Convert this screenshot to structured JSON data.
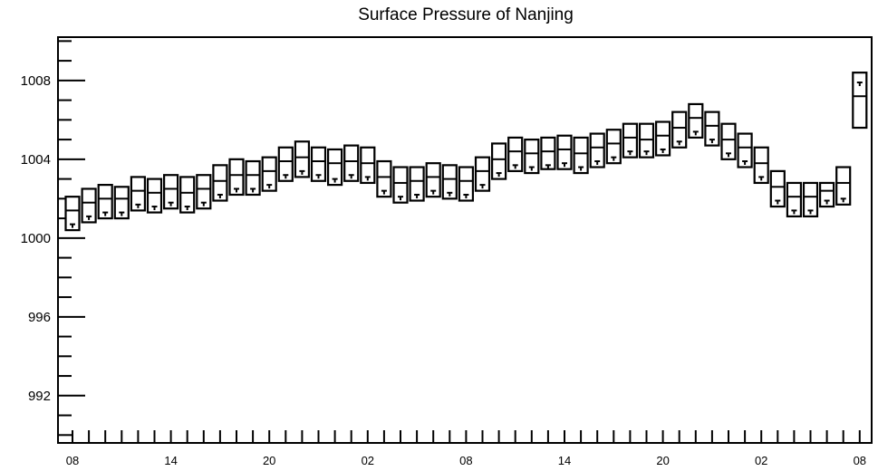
{
  "chart_data": {
    "type": "boxplot",
    "title": "Surface Pressure of Nanjing",
    "xlabel": "",
    "ylabel": "",
    "ylim": [
      989.6,
      1010.2
    ],
    "y_major_ticks": [
      992,
      996,
      1000,
      1004,
      1008
    ],
    "x_tick_labels": [
      "08",
      "14",
      "20",
      "02",
      "08",
      "14",
      "20",
      "02",
      "08"
    ],
    "x_tick_label_positions": [
      0,
      6,
      12,
      18,
      24,
      30,
      36,
      42,
      48
    ],
    "x_count": 49,
    "line_color": "#000000",
    "fill_color": "#ffffff",
    "background": "#ffffff",
    "boxes": [
      {
        "x": 0,
        "q1": 1000.4,
        "median": 1001.4,
        "q3": 1002.1,
        "mean": 1000.7
      },
      {
        "x": 1,
        "q1": 1000.8,
        "median": 1001.8,
        "q3": 1002.5,
        "mean": 1001.1
      },
      {
        "x": 2,
        "q1": 1001.0,
        "median": 1002.0,
        "q3": 1002.7,
        "mean": 1001.3
      },
      {
        "x": 3,
        "q1": 1001.0,
        "median": 1002.0,
        "q3": 1002.6,
        "mean": 1001.3
      },
      {
        "x": 4,
        "q1": 1001.4,
        "median": 1002.4,
        "q3": 1003.1,
        "mean": 1001.7
      },
      {
        "x": 5,
        "q1": 1001.3,
        "median": 1002.3,
        "q3": 1003.0,
        "mean": 1001.6
      },
      {
        "x": 6,
        "q1": 1001.5,
        "median": 1002.5,
        "q3": 1003.2,
        "mean": 1001.8
      },
      {
        "x": 7,
        "q1": 1001.3,
        "median": 1002.3,
        "q3": 1003.1,
        "mean": 1001.6
      },
      {
        "x": 8,
        "q1": 1001.5,
        "median": 1002.5,
        "q3": 1003.2,
        "mean": 1001.8
      },
      {
        "x": 9,
        "q1": 1001.9,
        "median": 1002.9,
        "q3": 1003.7,
        "mean": 1002.2
      },
      {
        "x": 10,
        "q1": 1002.2,
        "median": 1003.2,
        "q3": 1004.0,
        "mean": 1002.5
      },
      {
        "x": 11,
        "q1": 1002.2,
        "median": 1003.2,
        "q3": 1003.9,
        "mean": 1002.5
      },
      {
        "x": 12,
        "q1": 1002.4,
        "median": 1003.4,
        "q3": 1004.1,
        "mean": 1002.7
      },
      {
        "x": 13,
        "q1": 1002.9,
        "median": 1003.9,
        "q3": 1004.6,
        "mean": 1003.2
      },
      {
        "x": 14,
        "q1": 1003.1,
        "median": 1004.1,
        "q3": 1004.9,
        "mean": 1003.4
      },
      {
        "x": 15,
        "q1": 1002.9,
        "median": 1003.9,
        "q3": 1004.6,
        "mean": 1003.2
      },
      {
        "x": 16,
        "q1": 1002.7,
        "median": 1003.8,
        "q3": 1004.5,
        "mean": 1003.0
      },
      {
        "x": 17,
        "q1": 1002.9,
        "median": 1003.9,
        "q3": 1004.7,
        "mean": 1003.2
      },
      {
        "x": 18,
        "q1": 1002.8,
        "median": 1003.8,
        "q3": 1004.6,
        "mean": 1003.1
      },
      {
        "x": 19,
        "q1": 1002.1,
        "median": 1003.1,
        "q3": 1003.9,
        "mean": 1002.4
      },
      {
        "x": 20,
        "q1": 1001.8,
        "median": 1002.8,
        "q3": 1003.6,
        "mean": 1002.1
      },
      {
        "x": 21,
        "q1": 1001.9,
        "median": 1002.9,
        "q3": 1003.6,
        "mean": 1002.2
      },
      {
        "x": 22,
        "q1": 1002.1,
        "median": 1003.1,
        "q3": 1003.8,
        "mean": 1002.4
      },
      {
        "x": 23,
        "q1": 1002.0,
        "median": 1003.0,
        "q3": 1003.7,
        "mean": 1002.3
      },
      {
        "x": 24,
        "q1": 1001.9,
        "median": 1002.9,
        "q3": 1003.6,
        "mean": 1002.2
      },
      {
        "x": 25,
        "q1": 1002.4,
        "median": 1003.4,
        "q3": 1004.1,
        "mean": 1002.7
      },
      {
        "x": 26,
        "q1": 1003.0,
        "median": 1004.0,
        "q3": 1004.8,
        "mean": 1003.3
      },
      {
        "x": 27,
        "q1": 1003.4,
        "median": 1004.4,
        "q3": 1005.1,
        "mean": 1003.7
      },
      {
        "x": 28,
        "q1": 1003.3,
        "median": 1004.3,
        "q3": 1005.0,
        "mean": 1003.6
      },
      {
        "x": 29,
        "q1": 1003.5,
        "median": 1004.4,
        "q3": 1005.1,
        "mean": 1003.7
      },
      {
        "x": 30,
        "q1": 1003.5,
        "median": 1004.5,
        "q3": 1005.2,
        "mean": 1003.8
      },
      {
        "x": 31,
        "q1": 1003.3,
        "median": 1004.3,
        "q3": 1005.1,
        "mean": 1003.6
      },
      {
        "x": 32,
        "q1": 1003.6,
        "median": 1004.6,
        "q3": 1005.3,
        "mean": 1003.9
      },
      {
        "x": 33,
        "q1": 1003.8,
        "median": 1004.8,
        "q3": 1005.5,
        "mean": 1004.1
      },
      {
        "x": 34,
        "q1": 1004.1,
        "median": 1005.1,
        "q3": 1005.8,
        "mean": 1004.4
      },
      {
        "x": 35,
        "q1": 1004.1,
        "median": 1005.0,
        "q3": 1005.8,
        "mean": 1004.4
      },
      {
        "x": 36,
        "q1": 1004.2,
        "median": 1005.2,
        "q3": 1005.9,
        "mean": 1004.5
      },
      {
        "x": 37,
        "q1": 1004.6,
        "median": 1005.6,
        "q3": 1006.4,
        "mean": 1004.9
      },
      {
        "x": 38,
        "q1": 1005.1,
        "median": 1006.1,
        "q3": 1006.8,
        "mean": 1005.4
      },
      {
        "x": 39,
        "q1": 1004.7,
        "median": 1005.7,
        "q3": 1006.4,
        "mean": 1005.0
      },
      {
        "x": 40,
        "q1": 1004.0,
        "median": 1005.0,
        "q3": 1005.8,
        "mean": 1004.3
      },
      {
        "x": 41,
        "q1": 1003.6,
        "median": 1004.6,
        "q3": 1005.3,
        "mean": 1003.9
      },
      {
        "x": 42,
        "q1": 1002.8,
        "median": 1003.8,
        "q3": 1004.6,
        "mean": 1003.1
      },
      {
        "x": 43,
        "q1": 1001.6,
        "median": 1002.6,
        "q3": 1003.4,
        "mean": 1001.9
      },
      {
        "x": 44,
        "q1": 1001.1,
        "median": 1002.1,
        "q3": 1002.8,
        "mean": 1001.4
      },
      {
        "x": 45,
        "q1": 1001.1,
        "median": 1002.1,
        "q3": 1002.8,
        "mean": 1001.4
      },
      {
        "x": 46,
        "q1": 1001.6,
        "median": 1002.4,
        "q3": 1002.8,
        "mean": 1001.9
      },
      {
        "x": 47,
        "q1": 1001.7,
        "median": 1002.8,
        "q3": 1003.6,
        "mean": 1002.0
      },
      {
        "x": 48,
        "q1": 1005.6,
        "median": 1007.2,
        "q3": 1008.4,
        "mean": 1007.9
      }
    ]
  }
}
